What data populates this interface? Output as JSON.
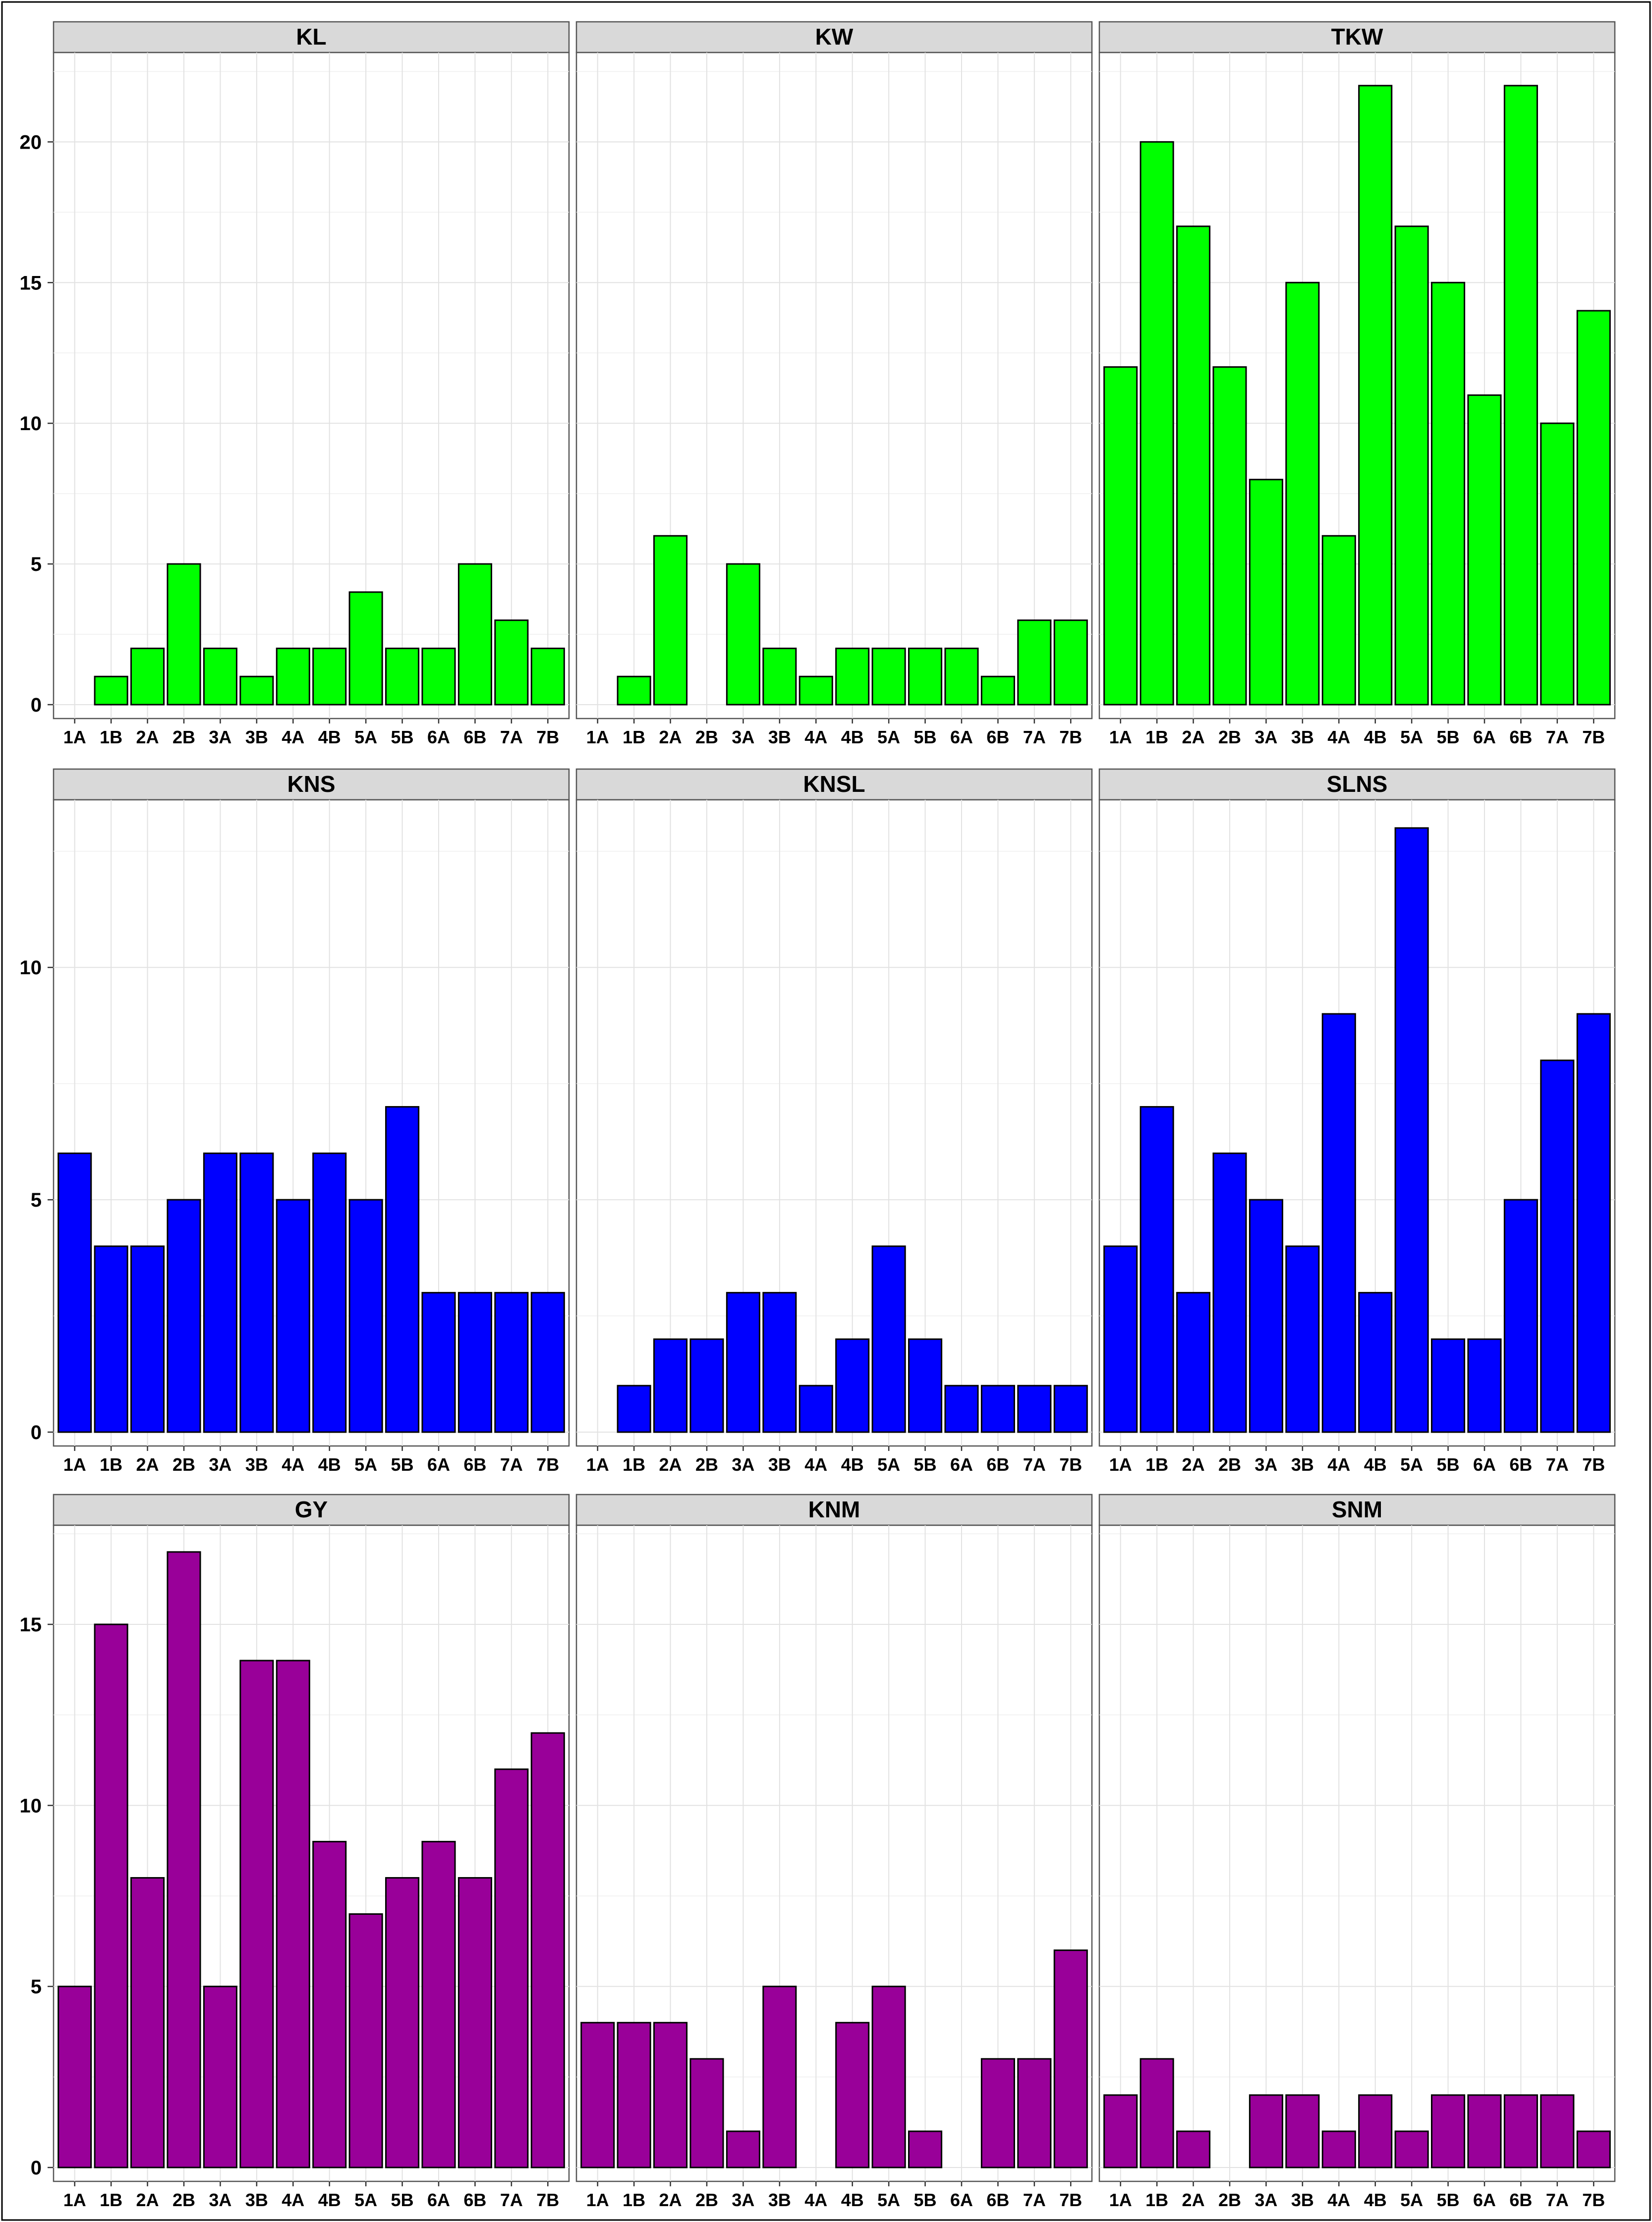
{
  "chart_data": {
    "type": "bar",
    "layout": "3x3 facet grid",
    "categories": [
      "1A",
      "1B",
      "2A",
      "2B",
      "3A",
      "3B",
      "4A",
      "4B",
      "5A",
      "5B",
      "6A",
      "6B",
      "7A",
      "7B"
    ],
    "rows": [
      {
        "color": "#00ff00",
        "ylim": [
          0,
          23
        ],
        "yticks": [
          0,
          5,
          10,
          15,
          20
        ],
        "panels": [
          {
            "title": "KL",
            "values": [
              0,
              1,
              2,
              5,
              2,
              1,
              2,
              2,
              4,
              2,
              2,
              5,
              3,
              2
            ]
          },
          {
            "title": "KW",
            "values": [
              0,
              1,
              6,
              0,
              5,
              2,
              1,
              2,
              2,
              2,
              2,
              1,
              3,
              3
            ]
          },
          {
            "title": "TKW",
            "values": [
              12,
              20,
              17,
              12,
              8,
              15,
              6,
              22,
              17,
              15,
              11,
              22,
              10,
              14
            ]
          }
        ]
      },
      {
        "color": "#0000ff",
        "ylim": [
          0,
          13.5
        ],
        "yticks": [
          0,
          5,
          10
        ],
        "panels": [
          {
            "title": "KNS",
            "values": [
              6,
              4,
              4,
              5,
              6,
              6,
              5,
              6,
              5,
              7,
              3,
              3,
              3,
              3
            ]
          },
          {
            "title": "KNSL",
            "values": [
              0,
              1,
              2,
              2,
              3,
              3,
              1,
              2,
              4,
              2,
              1,
              1,
              1,
              1
            ]
          },
          {
            "title": "SLNS",
            "values": [
              4,
              7,
              3,
              6,
              5,
              4,
              9,
              3,
              13,
              2,
              2,
              5,
              8,
              9
            ]
          }
        ]
      },
      {
        "color": "#990099",
        "ylim": [
          0,
          17.6
        ],
        "yticks": [
          0,
          5,
          10,
          15
        ],
        "panels": [
          {
            "title": "GY",
            "values": [
              5,
              15,
              8,
              17,
              5,
              14,
              14,
              9,
              7,
              8,
              9,
              8,
              11,
              12
            ]
          },
          {
            "title": "KNM",
            "values": [
              4,
              4,
              4,
              3,
              1,
              5,
              0,
              4,
              5,
              1,
              0,
              3,
              3,
              6
            ]
          },
          {
            "title": "SNM",
            "values": [
              2,
              3,
              1,
              0,
              2,
              2,
              1,
              2,
              1,
              2,
              2,
              2,
              2,
              1
            ]
          }
        ]
      }
    ],
    "grid": true,
    "xlabel": "",
    "ylabel": ""
  }
}
